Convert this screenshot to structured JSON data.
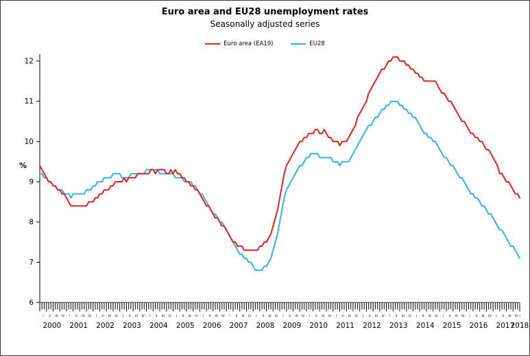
{
  "chart_data": {
    "type": "line",
    "title": "Euro area and EU28 unemployment rates",
    "subtitle": "Seasonally adjusted series",
    "xlabel": "",
    "ylabel": "%",
    "ylim": [
      6,
      12
    ],
    "yticks": [
      6,
      7,
      8,
      9,
      10,
      11,
      12
    ],
    "grid": false,
    "legend_position": "top",
    "x_unit": "month",
    "x_start": "2000-01",
    "x_end": "2018-01",
    "years": [
      2000,
      2001,
      2002,
      2003,
      2004,
      2005,
      2006,
      2007,
      2008,
      2009,
      2010,
      2011,
      2012,
      2013,
      2014,
      2015,
      2016,
      2017,
      2018
    ],
    "quarter_labels": [
      "I",
      "II",
      "III",
      "IV"
    ],
    "series": [
      {
        "name": "Euro area (EA19)",
        "color": "#e02020",
        "values": [
          9.4,
          9.3,
          9.2,
          9.1,
          9.0,
          9.0,
          8.9,
          8.9,
          8.8,
          8.8,
          8.7,
          8.7,
          8.6,
          8.5,
          8.4,
          8.4,
          8.4,
          8.4,
          8.4,
          8.4,
          8.4,
          8.4,
          8.5,
          8.5,
          8.5,
          8.6,
          8.6,
          8.7,
          8.7,
          8.8,
          8.8,
          8.8,
          8.9,
          8.9,
          9.0,
          9.0,
          9.0,
          9.0,
          9.1,
          9.0,
          9.1,
          9.1,
          9.1,
          9.1,
          9.2,
          9.2,
          9.2,
          9.2,
          9.2,
          9.2,
          9.3,
          9.3,
          9.2,
          9.3,
          9.3,
          9.3,
          9.3,
          9.2,
          9.2,
          9.3,
          9.2,
          9.3,
          9.2,
          9.2,
          9.1,
          9.1,
          9.0,
          9.0,
          8.9,
          8.9,
          8.8,
          8.8,
          8.7,
          8.6,
          8.5,
          8.4,
          8.4,
          8.3,
          8.2,
          8.1,
          8.1,
          8.0,
          7.9,
          7.9,
          7.8,
          7.7,
          7.6,
          7.5,
          7.5,
          7.4,
          7.4,
          7.4,
          7.3,
          7.3,
          7.3,
          7.3,
          7.3,
          7.3,
          7.3,
          7.4,
          7.4,
          7.5,
          7.5,
          7.6,
          7.7,
          7.9,
          8.1,
          8.3,
          8.6,
          8.9,
          9.2,
          9.4,
          9.5,
          9.6,
          9.7,
          9.8,
          9.9,
          10.0,
          10.0,
          10.1,
          10.1,
          10.2,
          10.2,
          10.2,
          10.3,
          10.3,
          10.2,
          10.2,
          10.3,
          10.2,
          10.1,
          10.1,
          10.0,
          10.0,
          10.0,
          9.9,
          10.0,
          10.0,
          10.0,
          10.1,
          10.2,
          10.3,
          10.4,
          10.6,
          10.7,
          10.8,
          10.9,
          11.0,
          11.2,
          11.3,
          11.4,
          11.5,
          11.6,
          11.7,
          11.8,
          11.8,
          11.9,
          12.0,
          12.0,
          12.1,
          12.1,
          12.1,
          12.0,
          12.0,
          12.0,
          11.9,
          11.9,
          11.8,
          11.8,
          11.7,
          11.7,
          11.6,
          11.6,
          11.5,
          11.5,
          11.5,
          11.5,
          11.5,
          11.5,
          11.4,
          11.3,
          11.2,
          11.2,
          11.1,
          11.0,
          11.0,
          10.9,
          10.8,
          10.7,
          10.6,
          10.5,
          10.5,
          10.4,
          10.3,
          10.2,
          10.2,
          10.1,
          10.1,
          10.0,
          10.0,
          9.9,
          9.8,
          9.8,
          9.7,
          9.6,
          9.5,
          9.4,
          9.2,
          9.2,
          9.1,
          9.0,
          9.0,
          8.9,
          8.8,
          8.7,
          8.7,
          8.6
        ]
      },
      {
        "name": "EU28",
        "color": "#2fb3e6",
        "values": [
          9.2,
          9.2,
          9.1,
          9.1,
          9.0,
          9.0,
          8.9,
          8.9,
          8.8,
          8.8,
          8.8,
          8.7,
          8.7,
          8.7,
          8.6,
          8.7,
          8.7,
          8.7,
          8.7,
          8.7,
          8.7,
          8.8,
          8.8,
          8.8,
          8.9,
          8.9,
          9.0,
          9.0,
          9.0,
          9.1,
          9.1,
          9.1,
          9.1,
          9.2,
          9.2,
          9.2,
          9.2,
          9.1,
          9.1,
          9.1,
          9.1,
          9.2,
          9.2,
          9.2,
          9.2,
          9.2,
          9.2,
          9.2,
          9.3,
          9.3,
          9.3,
          9.3,
          9.3,
          9.3,
          9.2,
          9.2,
          9.2,
          9.2,
          9.2,
          9.2,
          9.2,
          9.1,
          9.1,
          9.1,
          9.1,
          9.0,
          9.0,
          9.0,
          9.0,
          8.9,
          8.9,
          8.8,
          8.7,
          8.7,
          8.6,
          8.5,
          8.4,
          8.3,
          8.2,
          8.2,
          8.1,
          8.0,
          8.0,
          7.9,
          7.8,
          7.7,
          7.6,
          7.5,
          7.4,
          7.3,
          7.2,
          7.2,
          7.1,
          7.1,
          7.0,
          7.0,
          6.9,
          6.8,
          6.8,
          6.8,
          6.8,
          6.9,
          6.9,
          7.0,
          7.1,
          7.3,
          7.5,
          7.7,
          8.0,
          8.3,
          8.6,
          8.8,
          8.9,
          9.0,
          9.1,
          9.2,
          9.3,
          9.4,
          9.4,
          9.5,
          9.6,
          9.6,
          9.7,
          9.7,
          9.7,
          9.7,
          9.6,
          9.6,
          9.6,
          9.6,
          9.6,
          9.6,
          9.5,
          9.5,
          9.5,
          9.4,
          9.5,
          9.5,
          9.5,
          9.5,
          9.6,
          9.7,
          9.8,
          9.9,
          10.0,
          10.1,
          10.2,
          10.3,
          10.4,
          10.4,
          10.5,
          10.6,
          10.6,
          10.7,
          10.8,
          10.8,
          10.9,
          10.9,
          11.0,
          11.0,
          11.0,
          11.0,
          10.9,
          10.9,
          10.8,
          10.8,
          10.7,
          10.7,
          10.6,
          10.6,
          10.5,
          10.4,
          10.3,
          10.2,
          10.2,
          10.1,
          10.1,
          10.0,
          10.0,
          9.9,
          9.8,
          9.7,
          9.6,
          9.6,
          9.5,
          9.4,
          9.4,
          9.3,
          9.2,
          9.1,
          9.1,
          9.0,
          8.9,
          8.8,
          8.7,
          8.7,
          8.6,
          8.6,
          8.5,
          8.4,
          8.4,
          8.3,
          8.2,
          8.2,
          8.1,
          8.0,
          7.9,
          7.8,
          7.8,
          7.7,
          7.6,
          7.5,
          7.4,
          7.4,
          7.3,
          7.2,
          7.1
        ]
      }
    ]
  }
}
